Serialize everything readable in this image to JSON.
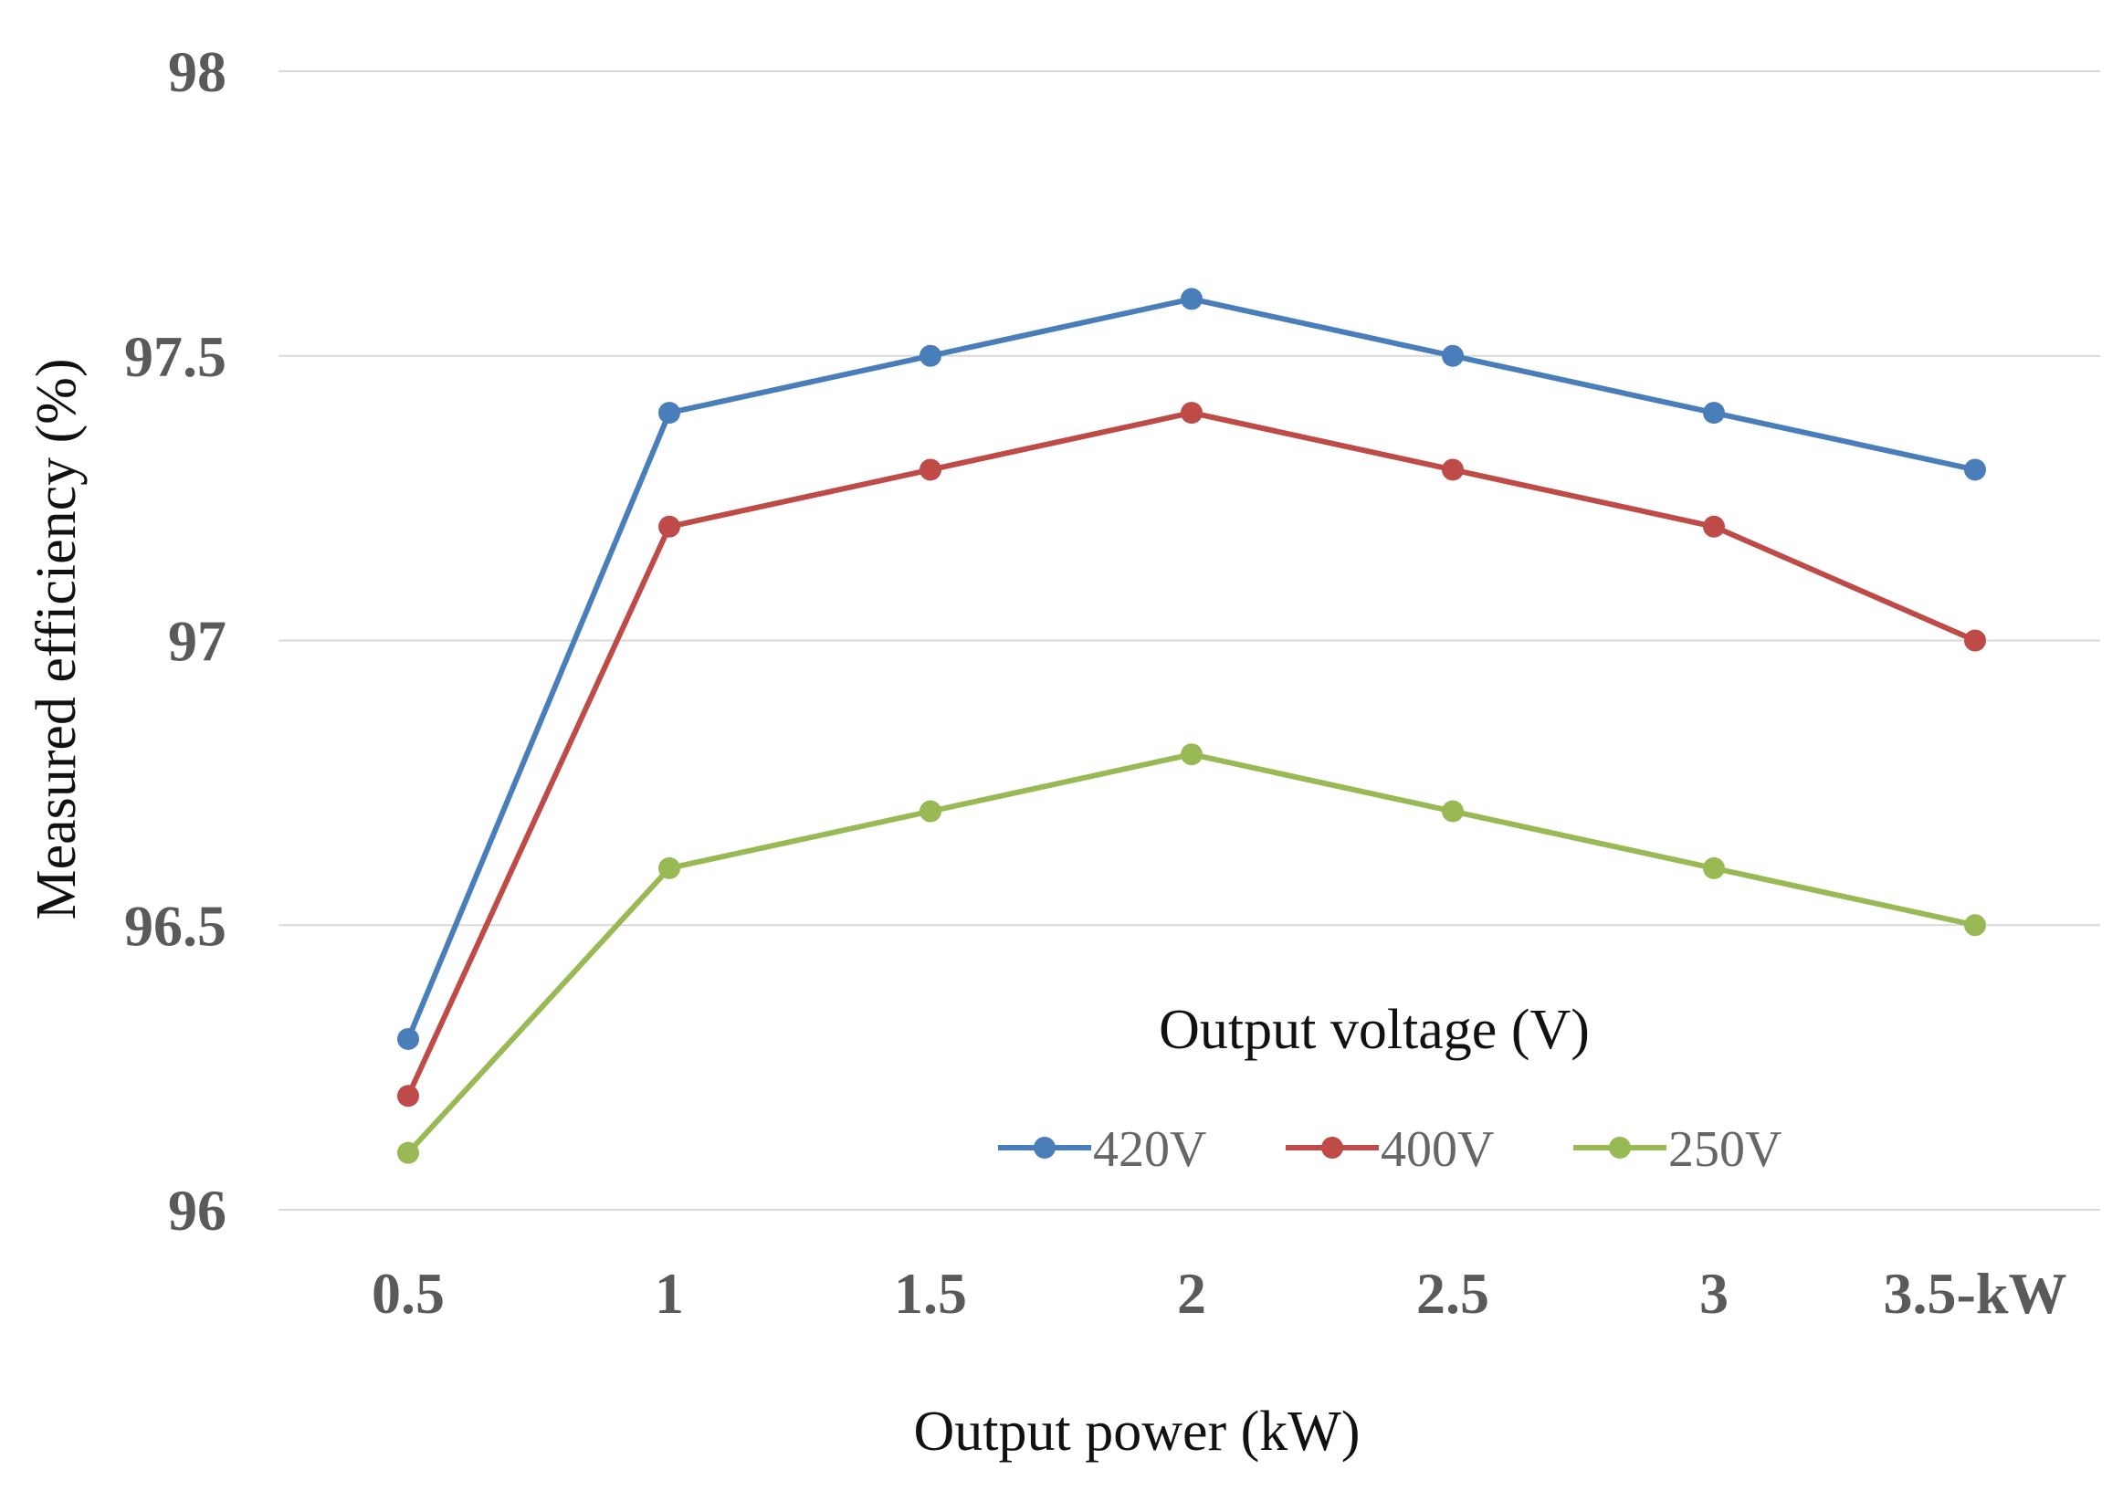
{
  "chart_data": {
    "type": "line",
    "title": "",
    "xlabel": "Output power (kW)",
    "ylabel": "Measured efficiency (%)",
    "categories": [
      "0.5",
      "1",
      "1.5",
      "2",
      "2.5",
      "3",
      "3.5-kW"
    ],
    "ylim": [
      96,
      98
    ],
    "yticks": [
      "96",
      "96.5",
      "97",
      "97.5",
      "98"
    ],
    "grid": true,
    "legend": {
      "title": "Output voltage (V)",
      "placement": "bottom-right"
    },
    "series": [
      {
        "name": "420V",
        "color": "#4a7ebb",
        "values": [
          96.3,
          97.4,
          97.5,
          97.6,
          97.5,
          97.4,
          97.3
        ]
      },
      {
        "name": "400V",
        "color": "#be4b48",
        "values": [
          96.2,
          97.2,
          97.3,
          97.4,
          97.3,
          97.2,
          97.0
        ]
      },
      {
        "name": "250V",
        "color": "#98b954",
        "values": [
          96.1,
          96.6,
          96.7,
          96.8,
          96.7,
          96.6,
          96.5
        ]
      }
    ]
  }
}
